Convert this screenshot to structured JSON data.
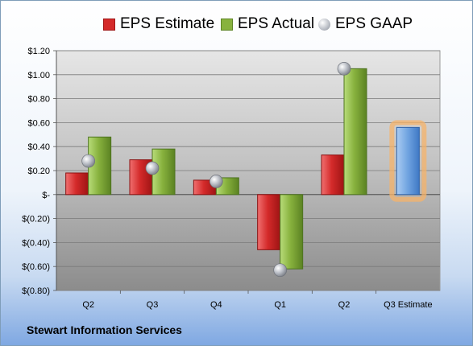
{
  "company_name": "Stewart Information Services",
  "legend": [
    {
      "label": "EPS Estimate",
      "color": "#e02020",
      "marker": "square"
    },
    {
      "label": "EPS Actual",
      "color": "#8cbc3c",
      "marker": "square"
    },
    {
      "label": "EPS GAAP",
      "color": "#b8bcc4",
      "marker": "sphere"
    }
  ],
  "chart_data": {
    "type": "bar",
    "categories": [
      "Q2",
      "Q3",
      "Q4",
      "Q1",
      "Q2",
      "Q3 Estimate"
    ],
    "series": [
      {
        "name": "EPS Estimate",
        "color": "#d42a2a",
        "values": [
          0.18,
          0.29,
          0.12,
          -0.46,
          0.33,
          null
        ]
      },
      {
        "name": "EPS Actual",
        "color": "#88b23e",
        "values": [
          0.48,
          0.38,
          0.14,
          -0.62,
          1.05,
          null
        ]
      },
      {
        "name": "EPS GAAP",
        "color": "#b8bcc4",
        "values": [
          0.28,
          0.22,
          0.11,
          -0.63,
          1.05,
          null
        ]
      }
    ],
    "estimate": {
      "category": "Q3 Estimate",
      "value": 0.56,
      "color": "#6fa3e0",
      "highlight": "#f5b36a"
    },
    "ylim": [
      -0.8,
      1.2
    ],
    "yticks": [
      1.2,
      1.0,
      0.8,
      0.6,
      0.4,
      0.2,
      0.0,
      -0.2,
      -0.4,
      -0.6,
      -0.8
    ],
    "ytick_labels": [
      "$1.20",
      "$1.00",
      "$0.80",
      "$0.60",
      "$0.40",
      "$0.20",
      "$-",
      "$(0.20)",
      "$(0.40)",
      "$(0.60)",
      "$(0.80)"
    ],
    "grid": true,
    "legend_position": "top"
  }
}
